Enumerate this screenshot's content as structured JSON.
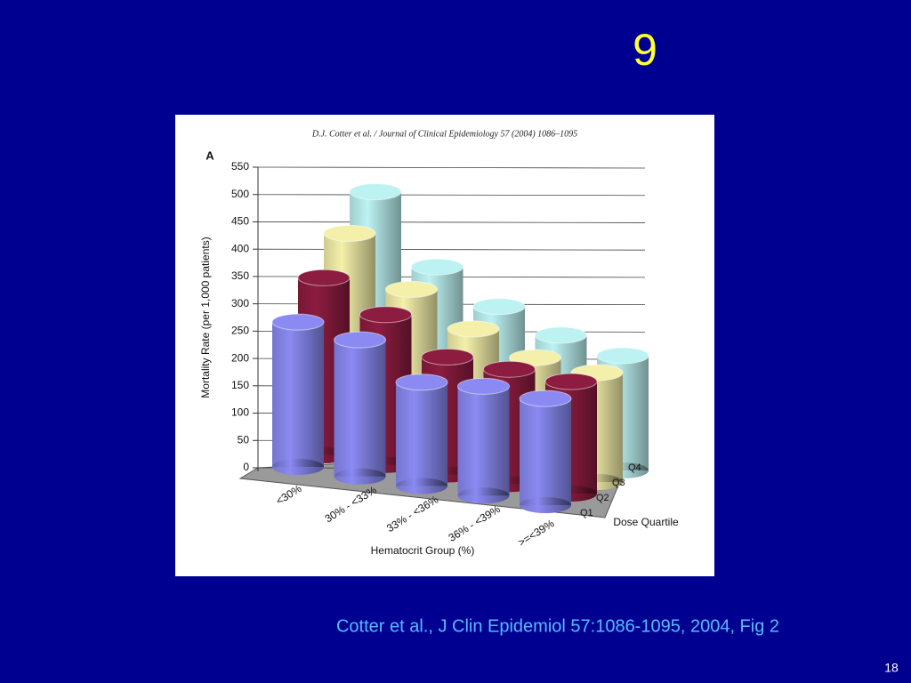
{
  "slide_title": "9",
  "citation": "Cotter et al., J Clin Epidemiol 57:1086-1095, 2004, Fig 2",
  "page_number": "18",
  "chart_data": {
    "type": "bar",
    "header": "D.J. Cotter et al. / Journal of Clinical Epidemiology 57 (2004) 1086–1095",
    "panel_label": "A",
    "y_label": "Mortality Rate (per 1,000 patients)",
    "x_label": "Hematocrit Group (%)",
    "z_label": "Dose Quartile",
    "categories": [
      "<30%",
      "30% - <33%",
      "33% - <36%",
      "36% - <39%",
      ">=<39%"
    ],
    "series": [
      {
        "name": "Q1",
        "color": "#8a8af2",
        "values": [
          265,
          250,
          190,
          200,
          195
        ]
      },
      {
        "name": "Q2",
        "color": "#8c1c40",
        "values": [
          325,
          275,
          215,
          210,
          205
        ]
      },
      {
        "name": "Q3",
        "color": "#f4f0aa",
        "values": [
          385,
          300,
          245,
          210,
          200
        ]
      },
      {
        "name": "Q4",
        "color": "#bdf2f2",
        "values": [
          440,
          320,
          265,
          230,
          210
        ]
      }
    ],
    "ylim": [
      0,
      550
    ],
    "yticks": [
      0,
      50,
      100,
      150,
      200,
      250,
      300,
      350,
      400,
      450,
      500,
      550
    ],
    "grid": true
  }
}
